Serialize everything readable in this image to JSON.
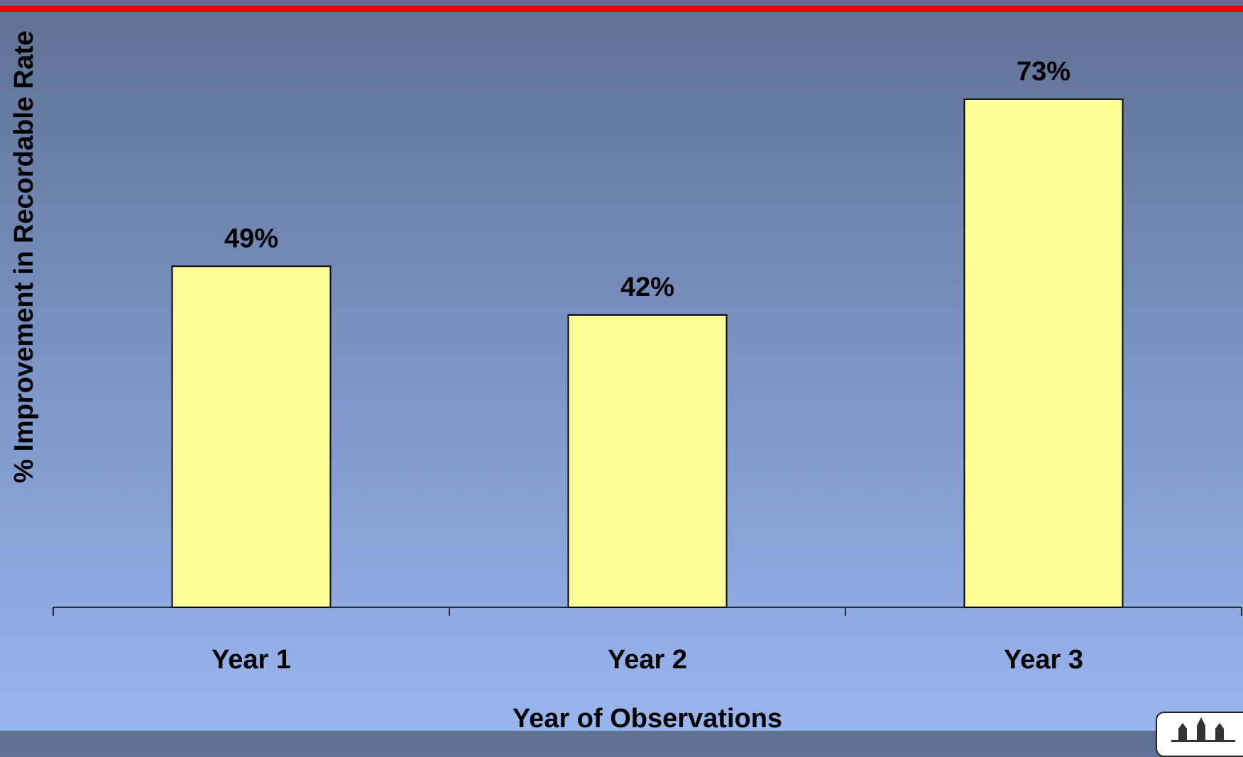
{
  "chart_data": {
    "type": "bar",
    "title": "",
    "xlabel": "Year of Observations",
    "ylabel": "% Improvement in Recordable Rate",
    "categories": [
      "Year 1",
      "Year 2",
      "Year 3"
    ],
    "values": [
      49,
      42,
      73
    ],
    "data_labels": [
      "49%",
      "42%",
      "73%"
    ],
    "ylim": [
      0,
      80
    ],
    "grid": false,
    "legend": "none",
    "colors": {
      "bar_fill": "#ffff99",
      "bar_stroke": "#000000",
      "axis": "#000000",
      "text": "#000000",
      "accent_bar": "#ee0000"
    }
  },
  "decorations": {
    "logo_icon": "building-logo-icon"
  }
}
